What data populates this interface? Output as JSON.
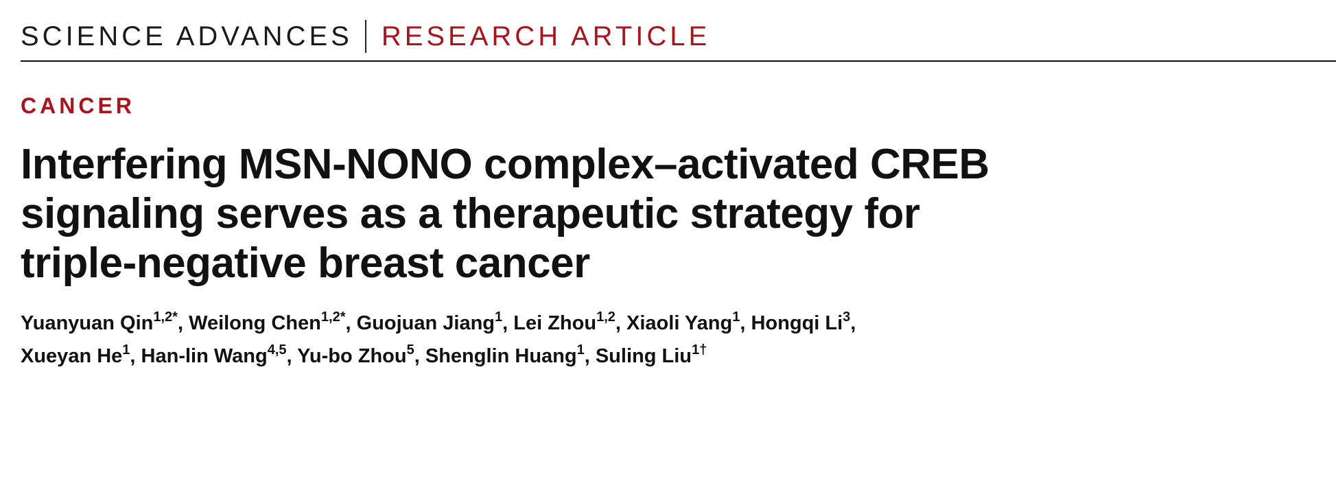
{
  "header": {
    "journal": "SCIENCE ADVANCES",
    "article_type": "RESEARCH ARTICLE"
  },
  "category": "CANCER",
  "title_lines": [
    "Interfering MSN-NONO complex–activated CREB",
    "signaling serves as a therapeutic strategy for",
    "triple-negative breast cancer"
  ],
  "author_separator": ",",
  "author_lines": [
    [
      {
        "name": "Yuanyuan Qin",
        "affiliations": "1,2*"
      },
      {
        "name": "Weilong Chen",
        "affiliations": "1,2*"
      },
      {
        "name": "Guojuan Jiang",
        "affiliations": "1"
      },
      {
        "name": "Lei Zhou",
        "affiliations": "1,2"
      },
      {
        "name": "Xiaoli Yang",
        "affiliations": "1"
      },
      {
        "name": "Hongqi Li",
        "affiliations": "3"
      }
    ],
    [
      {
        "name": "Xueyan He",
        "affiliations": "1"
      },
      {
        "name": "Han-lin Wang",
        "affiliations": "4,5"
      },
      {
        "name": "Yu-bo Zhou",
        "affiliations": "5"
      },
      {
        "name": "Shenglin Huang",
        "affiliations": "1"
      },
      {
        "name": "Suling Liu",
        "affiliations": "1†"
      }
    ]
  ]
}
